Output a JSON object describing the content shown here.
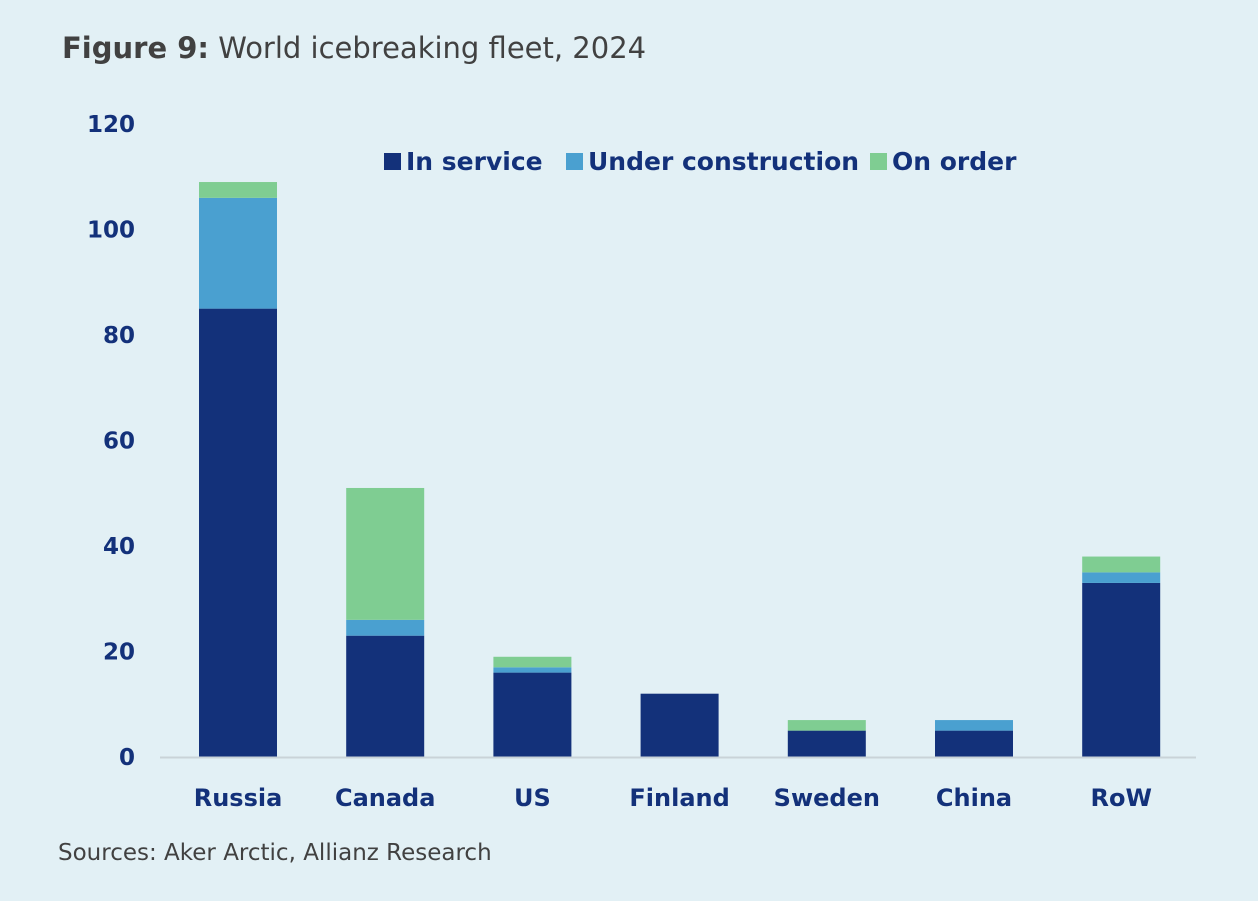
{
  "title_prefix": "Figure 9:",
  "title_rest": " World icebreaking fleet, 2024",
  "source": "Sources: Aker Arctic, Allianz Research",
  "chart_data": {
    "type": "bar",
    "stacked": true,
    "title": "Figure 9: World icebreaking fleet, 2024",
    "xlabel": "",
    "ylabel": "",
    "ylim": [
      0,
      120
    ],
    "yticks": [
      0,
      20,
      40,
      60,
      80,
      100,
      120
    ],
    "grid": false,
    "legend_position": "top-center",
    "categories": [
      "Russia",
      "Canada",
      "US",
      "Finland",
      "Sweden",
      "China",
      "RoW"
    ],
    "series": [
      {
        "name": "In service",
        "color": "#13317a",
        "values": [
          85,
          23,
          16,
          12,
          5,
          5,
          33
        ]
      },
      {
        "name": "Under construction",
        "color": "#4aa0d0",
        "values": [
          21,
          3,
          1,
          0,
          0,
          2,
          2
        ]
      },
      {
        "name": "On order",
        "color": "#7fcd92",
        "values": [
          3,
          25,
          2,
          0,
          2,
          0,
          3
        ]
      }
    ]
  }
}
